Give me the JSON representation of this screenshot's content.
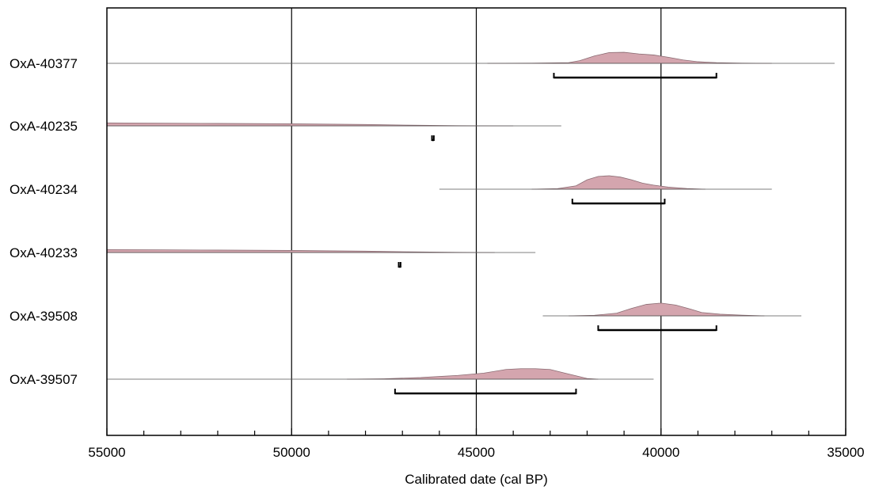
{
  "chart_data": {
    "type": "area",
    "xlabel": "Calibrated date (cal BP)",
    "x_axis": {
      "range": [
        55000,
        35000
      ],
      "reversed": true,
      "major_ticks": [
        55000,
        50000,
        45000,
        40000,
        35000
      ],
      "tick_labels": [
        "55000",
        "50000",
        "45000",
        "40000",
        "35000"
      ],
      "minor_tick_step": 1000
    },
    "grid": {
      "vertical_lines_at": [
        50000,
        45000,
        40000
      ]
    },
    "colors": {
      "density_fill": "#d4a5ae",
      "density_stroke": "#8a6b72",
      "baseline": "#555555",
      "range_bar": "#000000"
    },
    "series": [
      {
        "name": "OxA-40377",
        "baseline_extent": [
          55000,
          35300
        ],
        "density": [
          [
            44700,
            0
          ],
          [
            43500,
            0.01
          ],
          [
            42500,
            0.05
          ],
          [
            42200,
            0.2
          ],
          [
            41800,
            0.55
          ],
          [
            41400,
            0.8
          ],
          [
            41000,
            0.82
          ],
          [
            40600,
            0.7
          ],
          [
            40200,
            0.62
          ],
          [
            39800,
            0.45
          ],
          [
            39400,
            0.25
          ],
          [
            39000,
            0.12
          ],
          [
            38500,
            0.05
          ],
          [
            37800,
            0.01
          ],
          [
            37000,
            0
          ]
        ],
        "range_95": [
          42900,
          38500
        ]
      },
      {
        "name": "OxA-40235",
        "baseline_extent": [
          55000,
          42700
        ],
        "density": [
          [
            55000,
            0.22
          ],
          [
            52000,
            0.18
          ],
          [
            50000,
            0.15
          ],
          [
            48000,
            0.1
          ],
          [
            46500,
            0.04
          ],
          [
            45500,
            0.01
          ],
          [
            44000,
            0
          ]
        ],
        "range_95": [
          46200,
          46150
        ]
      },
      {
        "name": "OxA-40234",
        "baseline_extent": [
          46000,
          37000
        ],
        "density": [
          [
            43500,
            0
          ],
          [
            42800,
            0.04
          ],
          [
            42300,
            0.25
          ],
          [
            42000,
            0.7
          ],
          [
            41700,
            0.95
          ],
          [
            41400,
            1.0
          ],
          [
            41100,
            0.9
          ],
          [
            40800,
            0.7
          ],
          [
            40500,
            0.45
          ],
          [
            40200,
            0.3
          ],
          [
            39800,
            0.15
          ],
          [
            39300,
            0.05
          ],
          [
            38800,
            0
          ]
        ],
        "range_95": [
          42400,
          39900
        ]
      },
      {
        "name": "OxA-40233",
        "baseline_extent": [
          55000,
          43400
        ],
        "density": [
          [
            55000,
            0.22
          ],
          [
            52000,
            0.18
          ],
          [
            50000,
            0.15
          ],
          [
            48000,
            0.1
          ],
          [
            46500,
            0.04
          ],
          [
            45500,
            0.01
          ],
          [
            44500,
            0
          ]
        ],
        "range_95": [
          47100,
          47050
        ]
      },
      {
        "name": "OxA-39508",
        "baseline_extent": [
          43200,
          36200
        ],
        "density": [
          [
            42500,
            0
          ],
          [
            41800,
            0.04
          ],
          [
            41200,
            0.2
          ],
          [
            40800,
            0.55
          ],
          [
            40400,
            0.85
          ],
          [
            40000,
            0.95
          ],
          [
            39600,
            0.8
          ],
          [
            39200,
            0.5
          ],
          [
            38900,
            0.25
          ],
          [
            38400,
            0.12
          ],
          [
            37800,
            0.05
          ],
          [
            37200,
            0
          ]
        ],
        "range_95": [
          41700,
          38500
        ]
      },
      {
        "name": "OxA-39507",
        "baseline_extent": [
          55000,
          40200
        ],
        "density": [
          [
            48500,
            0
          ],
          [
            47500,
            0.03
          ],
          [
            46500,
            0.12
          ],
          [
            45500,
            0.28
          ],
          [
            44800,
            0.45
          ],
          [
            44200,
            0.72
          ],
          [
            43800,
            0.78
          ],
          [
            43400,
            0.78
          ],
          [
            43000,
            0.72
          ],
          [
            42600,
            0.45
          ],
          [
            42300,
            0.25
          ],
          [
            42000,
            0.05
          ],
          [
            41700,
            0
          ]
        ],
        "range_95": [
          47200,
          42300
        ]
      }
    ]
  }
}
